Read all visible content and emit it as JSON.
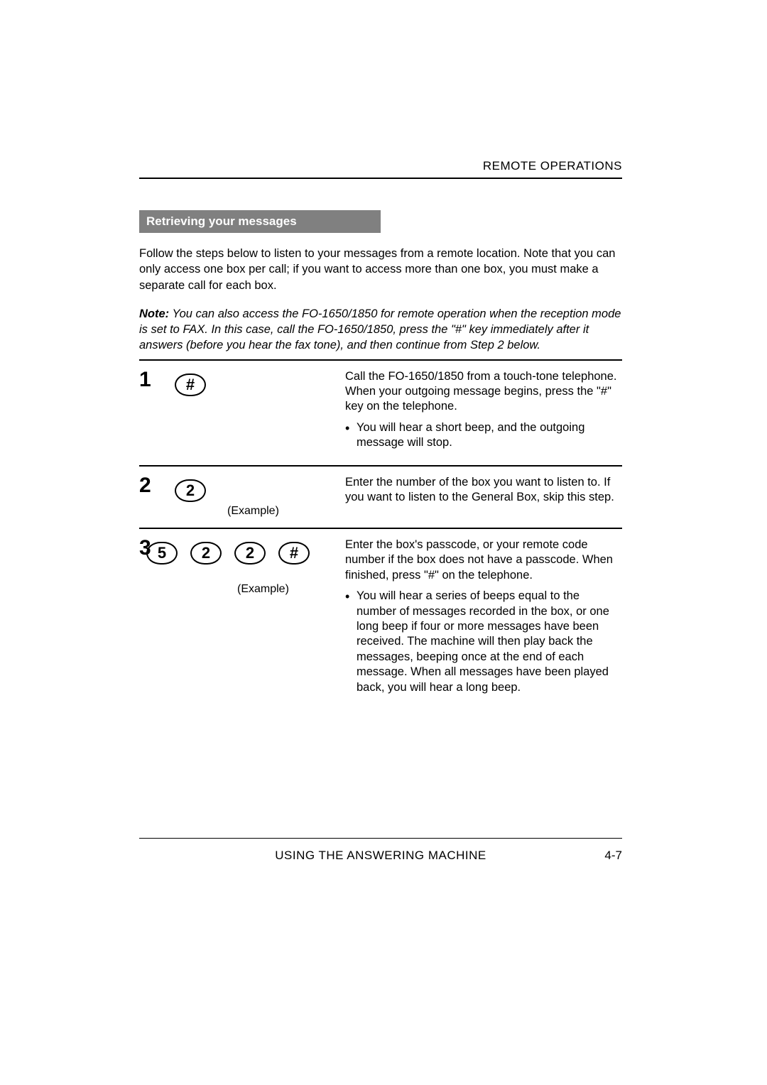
{
  "header": {
    "title": "REMOTE OPERATIONS"
  },
  "section": {
    "heading": "Retrieving your messages"
  },
  "intro": "Follow the steps below to listen to your messages from a remote location. Note that you can only access one box per call; if you want to access more than one box, you must make a separate call for each box.",
  "note": {
    "label": "Note:",
    "text": "You can also access the FO-1650/1850 for remote operation when the reception mode is set to FAX. In this case, call the FO-1650/1850, press the \"#\" key immediately after it answers (before you hear the fax tone), and then continue from Step 2 below."
  },
  "steps": [
    {
      "num": "1",
      "keys": [
        "#"
      ],
      "example": "",
      "desc": "Call the FO-1650/1850 from a touch-tone telephone. When your outgoing message begins, press the \"#\" key on the telephone.",
      "bullets": [
        "You will hear a short beep, and the outgoing message will stop."
      ]
    },
    {
      "num": "2",
      "keys": [
        "2"
      ],
      "example": "(Example)",
      "desc": "Enter the number of the box you want to listen to. If you want to listen to the General Box, skip this step.",
      "bullets": []
    },
    {
      "num": "3",
      "keys": [
        "5",
        "2",
        "2",
        "#"
      ],
      "example": "(Example)",
      "desc": "Enter the box's passcode, or your remote code number if the box does not have a passcode. When finished, press \"#\" on the telephone.",
      "bullets": [
        "You will hear a series of beeps equal to the number of messages recorded in the box, or one long beep if four or more messages have been received. The machine will then play back the messages, beeping once at the end of each message. When all messages have been played back, you will hear a long beep."
      ]
    }
  ],
  "footer": {
    "text": "USING THE ANSWERING MACHINE",
    "page": "4-7"
  },
  "colors": {
    "heading_bg": "#808080",
    "heading_fg": "#ffffff",
    "text": "#000000",
    "bg": "#ffffff"
  },
  "typography": {
    "body_fontsize_pt": 12,
    "step_num_fontsize_pt": 22,
    "family": "Arial, Helvetica, sans-serif"
  }
}
